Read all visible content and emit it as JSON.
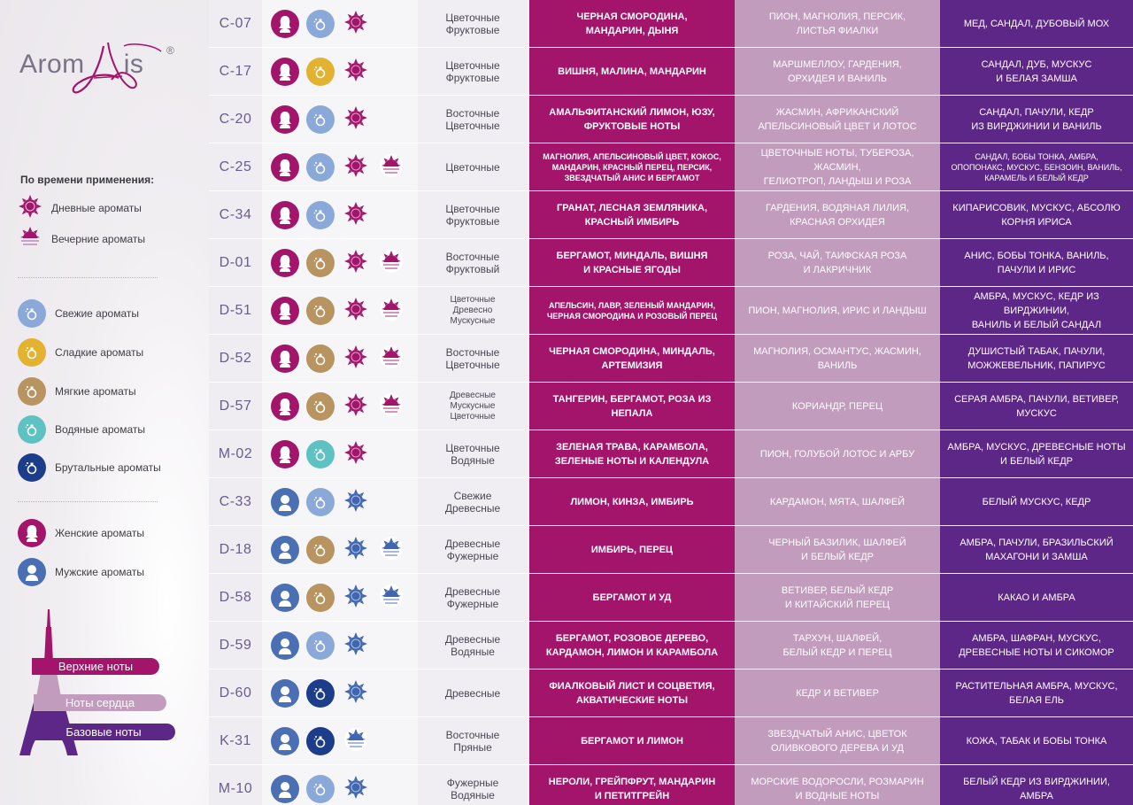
{
  "brand": {
    "name_left": "Arom",
    "name_right": "is",
    "reg": "®"
  },
  "legend": {
    "heading": "По времени применения:",
    "items": [
      {
        "icon": "day-sun",
        "label": "Дневные ароматы"
      },
      {
        "icon": "evening-sunset",
        "label": "Вечерние ароматы"
      },
      {
        "icon": "bottle-fresh",
        "label": "Свежие ароматы"
      },
      {
        "icon": "bottle-sweet",
        "label": "Сладкие ароматы"
      },
      {
        "icon": "bottle-soft",
        "label": "Мягкие ароматы"
      },
      {
        "icon": "bottle-aquatic",
        "label": "Водяные ароматы"
      },
      {
        "icon": "bottle-brutal",
        "label": "Брутальные ароматы"
      },
      {
        "icon": "female",
        "label": "Женские ароматы"
      },
      {
        "icon": "male",
        "label": "Мужские ароматы"
      }
    ],
    "notes": {
      "top": "Верхние ноты",
      "heart": "Ноты сердца",
      "base": "Базовые ноты"
    }
  },
  "colors": {
    "top_notes": "#a3156b",
    "heart_notes": "#c29cbd",
    "base_notes": "#5d2788",
    "female": "#a3156b",
    "male": "#4a6fb3",
    "fresh": "#8aa9d9",
    "sweet": "#e2b230",
    "soft": "#b89461",
    "aquatic": "#5fc2c2",
    "brutal": "#1c3d8a",
    "day_female": "#a3156b",
    "day_male": "#3f66b0"
  },
  "rows": [
    {
      "code": "C-07",
      "gender": "female",
      "type": "fresh",
      "time": [
        "day"
      ],
      "family": "Цветочные\nФруктовые",
      "top": "ЧЕРНАЯ СМОРОДИНА,\nМАНДАРИН, ДЫНЯ",
      "heart": "ПИОН, МАГНОЛИЯ, ПЕРСИК,\nЛИСТЬЯ ФИАЛКИ",
      "base": "МЕД, САНДАЛ, ДУБОВЫЙ МОХ"
    },
    {
      "code": "C-17",
      "gender": "female",
      "type": "sweet",
      "time": [
        "day"
      ],
      "family": "Цветочные\nФруктовые",
      "top": "ВИШНЯ, МАЛИНА, МАНДАРИН",
      "heart": "МАРШМЕЛЛОУ, ГАРДЕНИЯ,\nОРХИДЕЯ И ВАНИЛЬ",
      "base": "САНДАЛ, ДУБ, МУСКУС\nИ БЕЛАЯ ЗАМША"
    },
    {
      "code": "C-20",
      "gender": "female",
      "type": "fresh",
      "time": [
        "day"
      ],
      "family": "Восточные\nЦветочные",
      "top": "АМАЛЬФИТАНСКИЙ ЛИМОН, ЮЗУ,\nФРУКТОВЫЕ НОТЫ",
      "heart": "ЖАСМИН, АФРИКАНСКИЙ\nАПЕЛЬСИНОВЫЙ ЦВЕТ И ЛОТОС",
      "base": "САНДАЛ, ПАЧУЛИ, КЕДР\nИЗ ВИРДЖИНИИ И ВАНИЛЬ"
    },
    {
      "code": "C-25",
      "gender": "female",
      "type": "fresh",
      "time": [
        "day",
        "evening"
      ],
      "family": "Цветочные",
      "top": "МАГНОЛИЯ, АПЕЛЬСИНОВЫЙ ЦВЕТ, КОКОС,\nМАНДАРИН, КРАСНЫЙ ПЕРЕЦ, ПЕРСИК,\nЗВЕЗДЧАТЫЙ АНИС И БЕРГАМОТ",
      "heart": "ЦВЕТОЧНЫЕ НОТЫ, ТУБЕРОЗА, ЖАСМИН,\nГЕЛИОТРОП, ЛАНДЫШ И РОЗА",
      "base": "САНДАЛ, БОБЫ ТОНКА, АМБРА,\nОПОПОНАКС, МУСКУС, БЕНЗОИН, ВАНИЛЬ,\nКАРАМЕЛЬ И БЕЛЫЙ КЕДР"
    },
    {
      "code": "C-34",
      "gender": "female",
      "type": "fresh",
      "time": [
        "day"
      ],
      "family": "Цветочные\nФруктовые",
      "top": "ГРАНАТ, ЛЕСНАЯ ЗЕМЛЯНИКА,\nКРАСНЫЙ ИМБИРЬ",
      "heart": "ГАРДЕНИЯ, ВОДЯНАЯ ЛИЛИЯ,\nКРАСНАЯ ОРХИДЕЯ",
      "base": "КИПАРИСОВИК, МУСКУС, АБСОЛЮ\nКОРНЯ ИРИСА"
    },
    {
      "code": "D-01",
      "gender": "female",
      "type": "soft",
      "time": [
        "day",
        "evening"
      ],
      "family": "Восточные\nФруктовый",
      "top": "БЕРГАМОТ, МИНДАЛЬ, ВИШНЯ\nИ КРАСНЫЕ ЯГОДЫ",
      "heart": "РОЗА, ЧАЙ, ТАИФСКАЯ РОЗА\nИ ЛАКРИЧНИК",
      "base": "АНИС, БОБЫ ТОНКА, ВАНИЛЬ,\nПАЧУЛИ И ИРИС"
    },
    {
      "code": "D-51",
      "gender": "female",
      "type": "soft",
      "time": [
        "day",
        "evening"
      ],
      "family": "Цветочные\nДревесно\nМускусные",
      "top": "АПЕЛЬСИН, ЛАВР, ЗЕЛЕНЫЙ МАНДАРИН,\nЧЕРНАЯ СМОРОДИНА И РОЗОВЫЙ ПЕРЕЦ",
      "heart": "ПИОН, МАГНОЛИЯ, ИРИС И ЛАНДЫШ",
      "base": "АМБРА, МУСКУС, КЕДР ИЗ ВИРДЖИНИИ,\nВАНИЛЬ И БЕЛЫЙ САНДАЛ"
    },
    {
      "code": "D-52",
      "gender": "female",
      "type": "soft",
      "time": [
        "day",
        "evening"
      ],
      "family": "Восточные\nЦветочные",
      "top": "ЧЕРНАЯ СМОРОДИНА, МИНДАЛЬ,\nАРТЕМИЗИЯ",
      "heart": "МАГНОЛИЯ, ОСМАНТУС, ЖАСМИН,\nВАНИЛЬ",
      "base": "ДУШИСТЫЙ ТАБАК, ПАЧУЛИ,\nМОЖЖЕВЕЛЬНИК, ПАПИРУС"
    },
    {
      "code": "D-57",
      "gender": "female",
      "type": "soft",
      "time": [
        "day",
        "evening"
      ],
      "family": "Древесные\nМускусные\nЦветочные",
      "top": "ТАНГЕРИН, БЕРГАМОТ, РОЗА ИЗ НЕПАЛА",
      "heart": "КОРИАНДР, ПЕРЕЦ",
      "base": "СЕРАЯ АМБРА, ПАЧУЛИ, ВЕТИВЕР,\nМУСКУС"
    },
    {
      "code": "M-02",
      "gender": "female",
      "type": "aquatic",
      "time": [
        "day"
      ],
      "family": "Цветочные\nВодяные",
      "top": "ЗЕЛЕНАЯ ТРАВА, КАРАМБОЛА,\nЗЕЛЕНЫЕ НОТЫ И КАЛЕНДУЛА",
      "heart": "ПИОН, ГОЛУБОЙ ЛОТОС И АРБУ",
      "base": "АМБРА, МУСКУС, ДРЕВЕСНЫЕ НОТЫ\nИ БЕЛЫЙ КЕДР"
    },
    {
      "code": "C-33",
      "gender": "male",
      "type": "fresh",
      "time": [
        "day"
      ],
      "family": "Свежие\nДревесные",
      "top": "ЛИМОН, КИНЗА, ИМБИРЬ",
      "heart": "КАРДАМОН, МЯТА, ШАЛФЕЙ",
      "base": "БЕЛЫЙ МУСКУС, КЕДР"
    },
    {
      "code": "D-18",
      "gender": "male",
      "type": "soft",
      "time": [
        "day",
        "evening"
      ],
      "family": "Древесные\nФужерные",
      "top": "ИМБИРЬ, ПЕРЕЦ",
      "heart": "ЧЕРНЫЙ БАЗИЛИК, ШАЛФЕЙ\nИ БЕЛЫЙ КЕДР",
      "base": "АМБРА, ПАЧУЛИ, БРАЗИЛЬСКИЙ\nМАХАГОНИ И ЗАМША"
    },
    {
      "code": "D-58",
      "gender": "male",
      "type": "soft",
      "time": [
        "day",
        "evening"
      ],
      "family": "Древесные\nФужерные",
      "top": "БЕРГАМОТ И УД",
      "heart": "ВЕТИВЕР, БЕЛЫЙ КЕДР\nИ КИТАЙСКИЙ ПЕРЕЦ",
      "base": "КАКАО И АМБРА"
    },
    {
      "code": "D-59",
      "gender": "male",
      "type": "fresh",
      "time": [
        "day"
      ],
      "family": "Древесные\nВодяные",
      "top": "БЕРГАМОТ, РОЗОВОЕ ДЕРЕВО,\nКАРДАМОН, ЛИМОН И КАРАМБОЛА",
      "heart": "ТАРХУН, ШАЛФЕЙ,\nБЕЛЫЙ КЕДР И ПЕРЕЦ",
      "base": "АМБРА, ШАФРАН, МУСКУС,\nДРЕВЕСНЫЕ НОТЫ И СИКОМОР"
    },
    {
      "code": "D-60",
      "gender": "male",
      "type": "brutal",
      "time": [
        "day"
      ],
      "family": "Древесные",
      "top": "ФИАЛКОВЫЙ ЛИСТ И СОЦВЕТИЯ,\nАКВАТИЧЕСКИЕ НОТЫ",
      "heart": "КЕДР И ВЕТИВЕР",
      "base": "РАСТИТЕЛЬНАЯ АМБРА, МУСКУС,\nБЕЛАЯ ЕЛЬ"
    },
    {
      "code": "K-31",
      "gender": "male",
      "type": "brutal",
      "time": [
        "evening"
      ],
      "family": "Восточные\nПряные",
      "top": "БЕРГАМОТ И ЛИМОН",
      "heart": "ЗВЕЗДЧАТЫЙ АНИС, ЦВЕТОК\nОЛИВКОВОГО ДЕРЕВА И УД",
      "base": "КОЖА, ТАБАК И БОБЫ ТОНКА"
    },
    {
      "code": "M-10",
      "gender": "male",
      "type": "fresh",
      "time": [
        "day"
      ],
      "family": "Фужерные\nВодяные",
      "top": "НЕРОЛИ, ГРЕЙПФРУТ, МАНДАРИН\nИ ПЕТИТГРЕЙН",
      "heart": "МОРСКИЕ ВОДОРОСЛИ, РОЗМАРИН\nИ ВОДНЫЕ НОТЫ",
      "base": "БЕЛЫЙ КЕДР ИЗ ВИРДЖИНИИ, АМБРА"
    }
  ]
}
